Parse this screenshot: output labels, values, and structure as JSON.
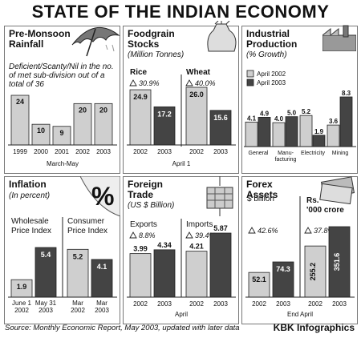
{
  "title": "STATE OF THE INDIAN ECONOMY",
  "footer": {
    "source": "Source: Monthly Economic Report, May 2003, updated with later data",
    "credit": "KBK Infographics"
  },
  "colors": {
    "dark": "#444444",
    "light": "#cfcfcf",
    "ink": "#111111",
    "bg": "#ffffff"
  },
  "chart_data": [
    {
      "id": "rainfall",
      "type": "bar",
      "title": "Pre-Monsoon Rainfall",
      "subtitle": "Deficient/Scanty/Nil in the no. of met sub-division out of a total of 36",
      "categories": [
        "1999",
        "2000",
        "2001",
        "2002",
        "2003"
      ],
      "values": [
        24,
        10,
        9,
        20,
        20
      ],
      "value_labels": [
        "24",
        "10",
        "9",
        "20",
        "20"
      ],
      "xlabel": "March-May"
    },
    {
      "id": "foodgrain",
      "type": "bar",
      "title": "Foodgrain Stocks",
      "subtitle": "(Million Tonnes)",
      "groups": [
        {
          "name": "Rice",
          "change": "30.9%",
          "categories": [
            "2002",
            "2003"
          ],
          "values": [
            24.9,
            17.2
          ],
          "value_labels": [
            "24.9",
            "17.2"
          ]
        },
        {
          "name": "Wheat",
          "change": "40.0%",
          "categories": [
            "2002",
            "2003"
          ],
          "values": [
            26.0,
            15.6
          ],
          "value_labels": [
            "26.0",
            "15.6"
          ]
        }
      ],
      "xlabel": "April 1"
    },
    {
      "id": "industrial",
      "type": "bar",
      "title": "Industrial Production",
      "subtitle": "(% Growth)",
      "legend": [
        "April 2002",
        "April 2003"
      ],
      "categories": [
        "General",
        "Manu-facturing",
        "Electricity",
        "Mining"
      ],
      "series": [
        {
          "name": "April 2002",
          "values": [
            4.1,
            4.0,
            5.2,
            3.6
          ],
          "value_labels": [
            "4.1",
            "4.0",
            "5.2",
            "3.6"
          ]
        },
        {
          "name": "April 2003",
          "values": [
            4.9,
            5.0,
            1.9,
            8.3
          ],
          "value_labels": [
            "4.9",
            "5.0",
            "1.9",
            "8.3"
          ]
        }
      ]
    },
    {
      "id": "inflation",
      "type": "bar",
      "title": "Inflation",
      "subtitle": "(In percent)",
      "groups": [
        {
          "name": "Wholesale Price Index",
          "categories": [
            "June 1 2002",
            "May 31 2003"
          ],
          "values": [
            1.9,
            5.4
          ],
          "value_labels": [
            "1.9",
            "5.4"
          ]
        },
        {
          "name": "Consumer Price Index",
          "categories": [
            "Mar 2002",
            "Mar 2003"
          ],
          "values": [
            5.2,
            4.1
          ],
          "value_labels": [
            "5.2",
            "4.1"
          ]
        }
      ]
    },
    {
      "id": "trade",
      "type": "bar",
      "title": "Foreign Trade",
      "subtitle": "(US $ Billion)",
      "groups": [
        {
          "name": "Exports",
          "change": "8.8%",
          "categories": [
            "2002",
            "2003"
          ],
          "values": [
            3.99,
            4.34
          ],
          "value_labels": [
            "3.99",
            "4.34"
          ]
        },
        {
          "name": "Imports",
          "change": "39.4%",
          "categories": [
            "2002",
            "2003"
          ],
          "values": [
            4.21,
            5.87
          ],
          "value_labels": [
            "4.21",
            "5.87"
          ]
        }
      ],
      "xlabel": "April"
    },
    {
      "id": "forex",
      "type": "bar",
      "title": "Forex Assets",
      "subtitle": "$ billion",
      "groups": [
        {
          "name": "$ billion",
          "change": "42.6%",
          "categories": [
            "2002",
            "2003"
          ],
          "values": [
            52.1,
            74.3
          ],
          "value_labels": [
            "52.1",
            "74.3"
          ]
        },
        {
          "name": "Rs. '000 crore",
          "change": "37.8%",
          "categories": [
            "2002",
            "2003"
          ],
          "values": [
            255.2,
            351.6
          ],
          "value_labels": [
            "255.2",
            "351.6"
          ]
        }
      ],
      "xlabel": "End April"
    }
  ]
}
